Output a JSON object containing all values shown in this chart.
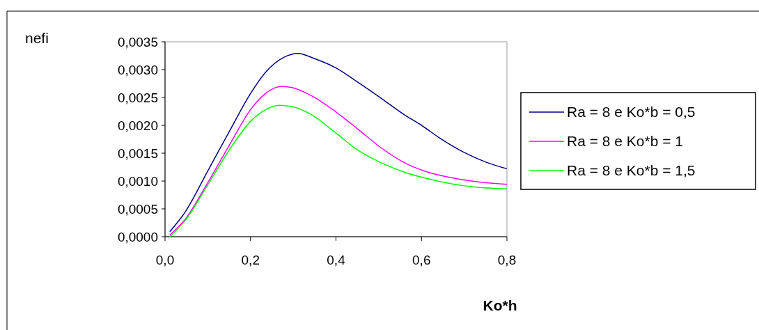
{
  "chart_data": {
    "type": "line",
    "xlabel": "Ko*h",
    "ylabel": "nefi",
    "xlim": [
      0,
      0.8
    ],
    "ylim": [
      0,
      0.0035
    ],
    "xticks": [
      {
        "value": 0,
        "label": "0,0"
      },
      {
        "value": 0.2,
        "label": "0,2"
      },
      {
        "value": 0.4,
        "label": "0,4"
      },
      {
        "value": 0.6,
        "label": "0,6"
      },
      {
        "value": 0.8,
        "label": "0,8"
      }
    ],
    "yticks": [
      {
        "value": 0,
        "label": "0,0000"
      },
      {
        "value": 0.0005,
        "label": "0,0005"
      },
      {
        "value": 0.001,
        "label": "0,0010"
      },
      {
        "value": 0.0015,
        "label": "0,0015"
      },
      {
        "value": 0.002,
        "label": "0,0020"
      },
      {
        "value": 0.0025,
        "label": "0,0025"
      },
      {
        "value": 0.003,
        "label": "0,0030"
      },
      {
        "value": 0.0035,
        "label": "0,0035"
      }
    ],
    "grid": false,
    "legend": "right",
    "marker": "none",
    "line_style": "solid",
    "series": [
      {
        "name": "Ra = 8 e Ko*b = 0,5",
        "color": "#000080",
        "x": [
          0.011,
          0.046,
          0.1,
          0.154,
          0.2,
          0.235,
          0.278,
          0.311,
          0.349,
          0.4,
          0.45,
          0.505,
          0.56,
          0.6,
          0.643,
          0.698,
          0.754,
          0.8
        ],
        "values": [
          9e-05,
          0.00043,
          0.00118,
          0.00194,
          0.00257,
          0.00295,
          0.00322,
          0.00329,
          0.0032,
          0.00303,
          0.00278,
          0.00249,
          0.00219,
          0.002,
          0.00177,
          0.00152,
          0.00133,
          0.00122
        ]
      },
      {
        "name": "Ra = 8 e Ko*b = 1",
        "color": "#ff00ff",
        "x": [
          0.011,
          0.046,
          0.1,
          0.154,
          0.2,
          0.235,
          0.273,
          0.295,
          0.343,
          0.4,
          0.45,
          0.505,
          0.56,
          0.615,
          0.67,
          0.726,
          0.8
        ],
        "values": [
          3e-05,
          0.0003,
          0.00097,
          0.00169,
          0.00228,
          0.00257,
          0.0027,
          0.00268,
          0.00253,
          0.00224,
          0.00194,
          0.0016,
          0.00133,
          0.00116,
          0.00106,
          0.00099,
          0.00094
        ]
      },
      {
        "name": "Ra = 8 e Ko*b = 1,5",
        "color": "#00ff00",
        "x": [
          0.011,
          0.046,
          0.1,
          0.154,
          0.2,
          0.235,
          0.268,
          0.295,
          0.343,
          0.4,
          0.45,
          0.505,
          0.56,
          0.615,
          0.67,
          0.726,
          0.8
        ],
        "values": [
          0,
          0.00028,
          0.00093,
          0.0016,
          0.00207,
          0.00228,
          0.00236,
          0.00234,
          0.00219,
          0.00186,
          0.00156,
          0.00133,
          0.00116,
          0.00104,
          0.00095,
          0.00089,
          0.00086
        ]
      }
    ]
  }
}
